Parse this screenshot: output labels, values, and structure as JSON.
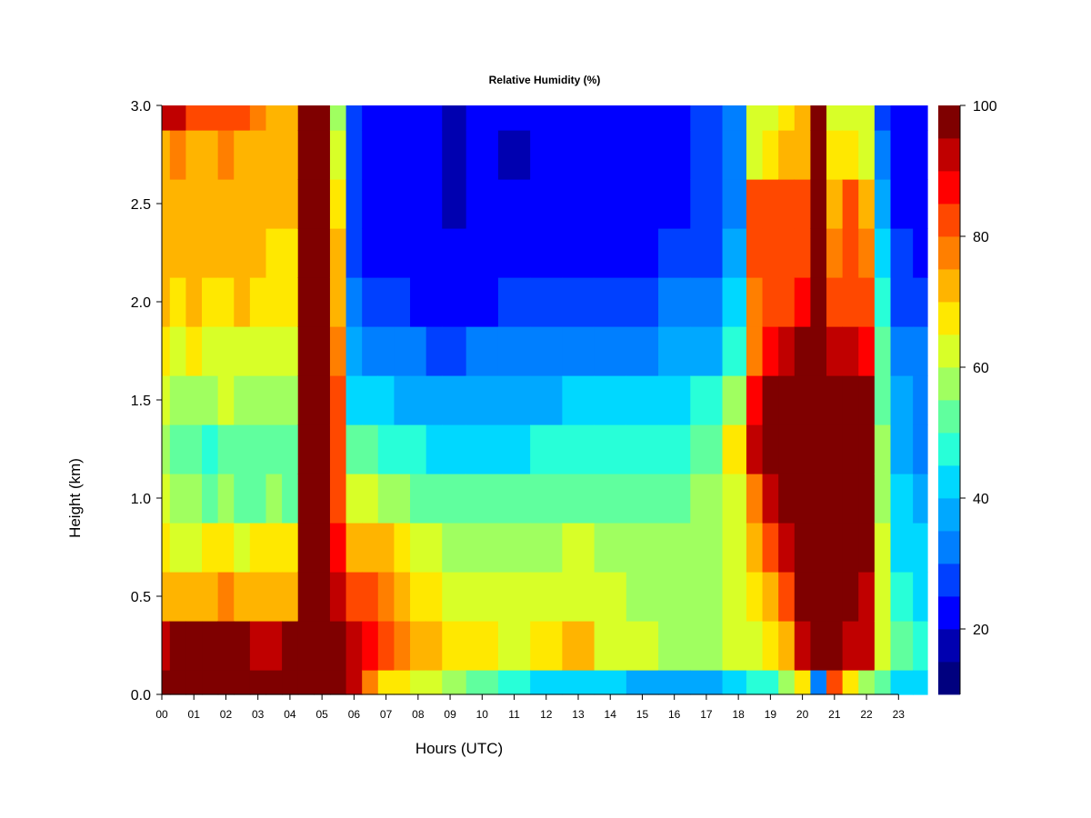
{
  "chart_data": {
    "type": "heatmap",
    "title": "Relative Humidity (%)",
    "xlabel": "Hours (UTC)",
    "ylabel": "Height (km)",
    "xlim": [
      0,
      23.9
    ],
    "ylim": [
      0.0,
      3.0
    ],
    "x_ticks": [
      "00",
      "01",
      "02",
      "03",
      "04",
      "05",
      "06",
      "07",
      "08",
      "09",
      "10",
      "11",
      "12",
      "13",
      "14",
      "15",
      "16",
      "17",
      "18",
      "19",
      "20",
      "21",
      "22",
      "23"
    ],
    "y_ticks": [
      "0.0",
      "0.5",
      "1.0",
      "1.5",
      "2.0",
      "2.5",
      "3.0"
    ],
    "colorbar": {
      "range": [
        10,
        100
      ],
      "step": 5,
      "tick_labels": [
        "20",
        "40",
        "60",
        "80",
        "100"
      ],
      "colors": [
        "#00007f",
        "#0000b0",
        "#0000ff",
        "#0040ff",
        "#007fff",
        "#00a8ff",
        "#00d8ff",
        "#28ffd8",
        "#60ff9e",
        "#a0ff60",
        "#d8ff28",
        "#ffe800",
        "#ffb400",
        "#ff7f00",
        "#ff4800",
        "#ff0000",
        "#c00000",
        "#7f0000"
      ]
    },
    "columns_hours": [
      0,
      0.5,
      1,
      1.5,
      2,
      2.5,
      3,
      3.5,
      4,
      4.5,
      5,
      5.5,
      6,
      6.5,
      7,
      7.5,
      8,
      8.5,
      9,
      10,
      11,
      12,
      13,
      14,
      15,
      16,
      17,
      18,
      18.5,
      19,
      19.5,
      20,
      20.5,
      21,
      21.5,
      22,
      22.5,
      23,
      23.9
    ],
    "rows_km": [
      0.0,
      0.25,
      0.5,
      0.75,
      1.0,
      1.25,
      1.5,
      1.75,
      2.0,
      2.25,
      2.5,
      2.75,
      3.0
    ],
    "rh_percent": [
      [
        98,
        92,
        70,
        66,
        60,
        58,
        62,
        66,
        70,
        70,
        72,
        74,
        92
      ],
      [
        100,
        96,
        74,
        62,
        56,
        52,
        58,
        64,
        68,
        70,
        72,
        78,
        92
      ],
      [
        100,
        96,
        72,
        64,
        58,
        54,
        58,
        66,
        72,
        70,
        72,
        74,
        84
      ],
      [
        100,
        96,
        74,
        66,
        50,
        48,
        56,
        64,
        68,
        70,
        72,
        74,
        82
      ],
      [
        100,
        96,
        76,
        66,
        56,
        52,
        60,
        64,
        68,
        72,
        74,
        76,
        82
      ],
      [
        100,
        96,
        74,
        64,
        54,
        50,
        58,
        64,
        70,
        72,
        74,
        74,
        80
      ],
      [
        100,
        94,
        72,
        66,
        54,
        50,
        56,
        62,
        68,
        70,
        70,
        72,
        76
      ],
      [
        100,
        94,
        72,
        66,
        56,
        50,
        58,
        62,
        66,
        68,
        70,
        70,
        74
      ],
      [
        100,
        96,
        74,
        66,
        54,
        50,
        58,
        62,
        66,
        68,
        70,
        70,
        74
      ],
      [
        100,
        100,
        100,
        100,
        100,
        100,
        100,
        100,
        100,
        100,
        100,
        100,
        100
      ],
      [
        100,
        100,
        100,
        100,
        100,
        100,
        100,
        100,
        100,
        100,
        100,
        100,
        100
      ],
      [
        98,
        100,
        92,
        88,
        84,
        82,
        80,
        78,
        74,
        70,
        66,
        62,
        56
      ],
      [
        90,
        92,
        82,
        74,
        62,
        52,
        44,
        38,
        32,
        28,
        26,
        26,
        26
      ],
      [
        76,
        86,
        82,
        72,
        60,
        50,
        40,
        32,
        28,
        24,
        22,
        22,
        22
      ],
      [
        68,
        80,
        78,
        70,
        58,
        48,
        40,
        30,
        26,
        22,
        20,
        20,
        20
      ],
      [
        66,
        76,
        72,
        66,
        56,
        46,
        38,
        30,
        26,
        22,
        20,
        20,
        20
      ],
      [
        64,
        72,
        68,
        62,
        54,
        46,
        36,
        30,
        24,
        22,
        20,
        20,
        20
      ],
      [
        60,
        70,
        68,
        60,
        52,
        44,
        36,
        28,
        24,
        20,
        20,
        20,
        20
      ],
      [
        56,
        66,
        64,
        58,
        50,
        42,
        36,
        28,
        24,
        20,
        18,
        18,
        18
      ],
      [
        50,
        68,
        62,
        56,
        50,
        42,
        36,
        30,
        24,
        22,
        20,
        20,
        20
      ],
      [
        46,
        64,
        62,
        56,
        50,
        44,
        38,
        32,
        26,
        22,
        20,
        18,
        20
      ],
      [
        42,
        66,
        62,
        58,
        50,
        46,
        38,
        32,
        26,
        22,
        20,
        20,
        20
      ],
      [
        42,
        70,
        64,
        60,
        52,
        46,
        40,
        34,
        28,
        24,
        22,
        22,
        22
      ],
      [
        40,
        62,
        62,
        58,
        52,
        48,
        40,
        34,
        28,
        24,
        22,
        22,
        22
      ],
      [
        36,
        60,
        58,
        58,
        52,
        48,
        40,
        34,
        28,
        24,
        22,
        22,
        24
      ],
      [
        36,
        58,
        58,
        56,
        54,
        48,
        42,
        36,
        30,
        26,
        24,
        24,
        24
      ],
      [
        38,
        58,
        58,
        56,
        56,
        52,
        46,
        38,
        32,
        28,
        26,
        26,
        26
      ],
      [
        42,
        60,
        60,
        60,
        62,
        66,
        58,
        46,
        40,
        36,
        32,
        30,
        30
      ],
      [
        46,
        64,
        68,
        70,
        78,
        90,
        86,
        78,
        76,
        82,
        84,
        62,
        60
      ],
      [
        48,
        68,
        72,
        80,
        92,
        96,
        98,
        88,
        80,
        84,
        84,
        68,
        64
      ],
      [
        56,
        74,
        82,
        90,
        96,
        100,
        100,
        90,
        84,
        84,
        82,
        70,
        68
      ],
      [
        68,
        94,
        100,
        100,
        100,
        100,
        100,
        98,
        88,
        84,
        80,
        72,
        72
      ],
      [
        30,
        100,
        100,
        100,
        100,
        100,
        100,
        100,
        100,
        100,
        100,
        100,
        100
      ],
      [
        80,
        100,
        100,
        100,
        100,
        100,
        100,
        94,
        84,
        78,
        74,
        66,
        62
      ],
      [
        66,
        94,
        96,
        98,
        100,
        100,
        98,
        90,
        84,
        82,
        80,
        66,
        62
      ],
      [
        58,
        92,
        92,
        96,
        96,
        100,
        96,
        88,
        82,
        78,
        74,
        64,
        60
      ],
      [
        50,
        64,
        64,
        60,
        56,
        56,
        54,
        50,
        46,
        42,
        36,
        30,
        28
      ],
      [
        44,
        50,
        48,
        44,
        40,
        38,
        36,
        32,
        28,
        26,
        24,
        22,
        22
      ],
      [
        42,
        46,
        44,
        40,
        36,
        34,
        32,
        30,
        26,
        24,
        22,
        20,
        20
      ]
    ]
  }
}
